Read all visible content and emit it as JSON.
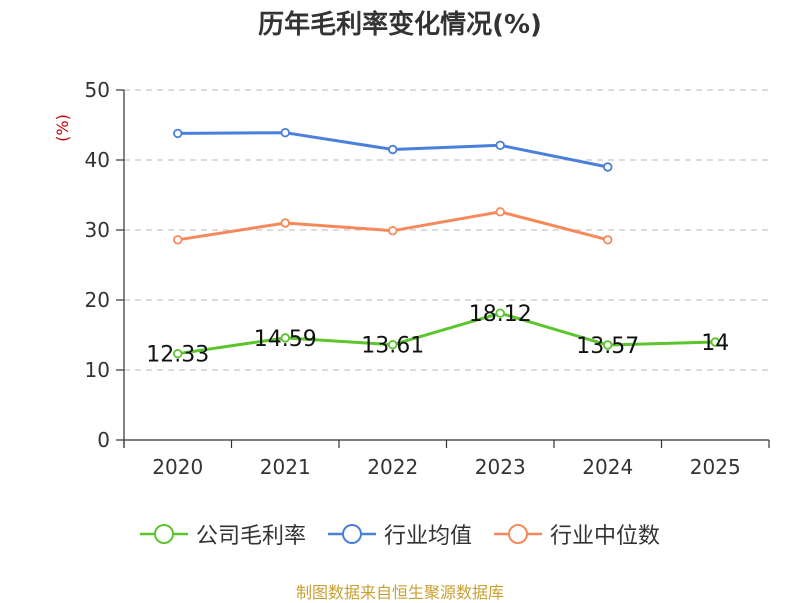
{
  "chart_data": {
    "type": "line",
    "title": "历年毛利率变化情况(%)",
    "ylabel": "(%)",
    "xlabel": "",
    "categories": [
      "2020",
      "2021",
      "2022",
      "2023",
      "2024",
      "2025"
    ],
    "ylim": [
      0,
      50
    ],
    "yticks": [
      0,
      10,
      20,
      30,
      40,
      50
    ],
    "grid": true,
    "legend_position": "bottom",
    "series": [
      {
        "name": "公司毛利率",
        "color": "#5cc42c",
        "values": [
          12.33,
          14.59,
          13.61,
          18.12,
          13.57,
          14
        ],
        "labels": [
          "12.33",
          "14.59",
          "13.61",
          "18.12",
          "13.57",
          "14"
        ]
      },
      {
        "name": "行业均值",
        "color": "#4a7fdc",
        "values": [
          43.8,
          43.9,
          41.5,
          42.1,
          39.0,
          null
        ]
      },
      {
        "name": "行业中位数",
        "color": "#f5895a",
        "values": [
          28.6,
          31.0,
          29.9,
          32.6,
          28.6,
          null
        ]
      }
    ]
  },
  "source_note": "制图数据来自恒生聚源数据库"
}
